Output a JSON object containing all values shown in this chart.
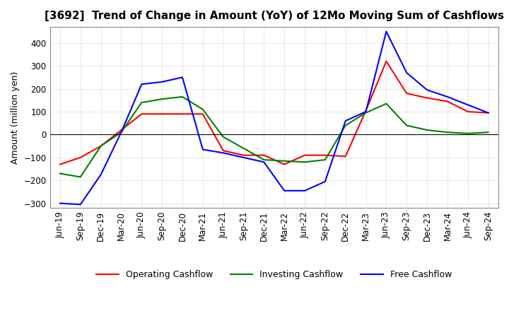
{
  "title": "[3692]  Trend of Change in Amount (YoY) of 12Mo Moving Sum of Cashflows",
  "ylabel": "Amount (million yen)",
  "title_fontsize": 11,
  "label_fontsize": 9,
  "tick_fontsize": 8.5,
  "ylim": [
    -320,
    470
  ],
  "yticks": [
    -300,
    -200,
    -100,
    0,
    100,
    200,
    300,
    400
  ],
  "grid_color": "#aaaaaa",
  "background_color": "#ffffff",
  "x_labels": [
    "Jun-19",
    "Sep-19",
    "Dec-19",
    "Mar-20",
    "Jun-20",
    "Sep-20",
    "Dec-20",
    "Mar-21",
    "Jun-21",
    "Sep-21",
    "Dec-21",
    "Mar-22",
    "Jun-22",
    "Sep-22",
    "Dec-22",
    "Mar-23",
    "Jun-23",
    "Sep-23",
    "Dec-23",
    "Mar-24",
    "Jun-24",
    "Sep-24"
  ],
  "operating_cashflow": [
    -130,
    -100,
    -50,
    20,
    90,
    90,
    90,
    90,
    -70,
    -90,
    -90,
    -130,
    -90,
    -90,
    -95,
    105,
    320,
    180,
    160,
    145,
    100,
    95
  ],
  "investing_cashflow": [
    -170,
    -185,
    -50,
    10,
    140,
    155,
    165,
    110,
    -10,
    -60,
    -110,
    -115,
    -120,
    -110,
    40,
    95,
    135,
    40,
    20,
    10,
    5,
    10
  ],
  "free_cashflow": [
    -300,
    -305,
    -175,
    10,
    220,
    230,
    250,
    -65,
    -80,
    -100,
    -120,
    -245,
    -245,
    -205,
    60,
    100,
    450,
    270,
    195,
    165,
    130,
    95
  ],
  "operating_color": "#ff0000",
  "investing_color": "#008000",
  "free_color": "#0000ff"
}
